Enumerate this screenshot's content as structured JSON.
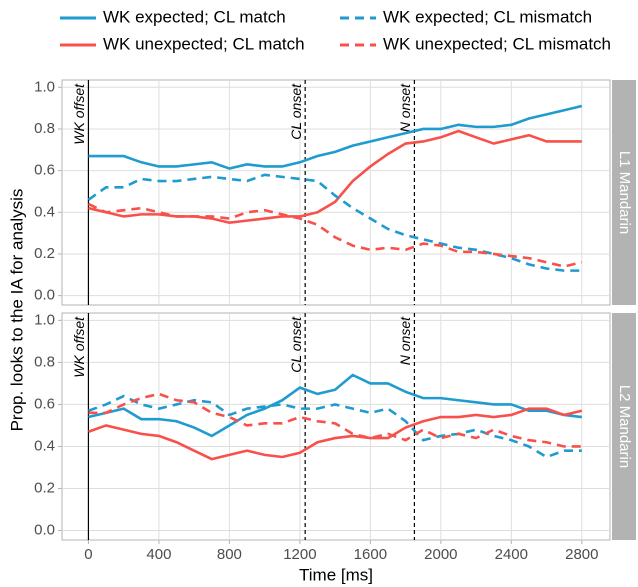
{
  "chart_data": [
    {
      "type": "line",
      "ylabel": "Prop. looks to the IA for analysis",
      "strip": "L1 Mandarin",
      "x": [
        0,
        100,
        200,
        300,
        400,
        500,
        600,
        700,
        800,
        900,
        1000,
        1100,
        1200,
        1300,
        1400,
        1500,
        1600,
        1700,
        1800,
        1900,
        2000,
        2100,
        2200,
        2300,
        2400,
        2500,
        2600,
        2700,
        2800
      ],
      "xlim": [
        -150,
        2960
      ],
      "ylim": [
        -0.045,
        1.035
      ],
      "yticks": [
        {
          "value": 0,
          "label": "0.0"
        },
        0.2,
        0.4,
        0.6,
        0.8,
        {
          "value": 1,
          "label": "1.0"
        }
      ],
      "grid": true,
      "annotations": [
        {
          "x": 0,
          "label": "WK offset",
          "dashed": false
        },
        {
          "x": 1230,
          "label": "CL onset",
          "dashed": true
        },
        {
          "x": 1850,
          "label": "N onset",
          "dashed": true
        }
      ],
      "series": [
        {
          "name": "WK expected; CL match",
          "color": "#1f9bcf",
          "dashed": false,
          "values": [
            0.67,
            0.67,
            0.67,
            0.64,
            0.62,
            0.62,
            0.63,
            0.64,
            0.61,
            0.63,
            0.62,
            0.62,
            0.64,
            0.67,
            0.69,
            0.72,
            0.74,
            0.76,
            0.78,
            0.8,
            0.8,
            0.82,
            0.81,
            0.81,
            0.82,
            0.85,
            0.87,
            0.89,
            0.91
          ]
        },
        {
          "name": "WK unexpected; CL match",
          "color": "#f8504b",
          "dashed": false,
          "values": [
            0.42,
            0.4,
            0.38,
            0.39,
            0.39,
            0.38,
            0.38,
            0.37,
            0.35,
            0.36,
            0.37,
            0.38,
            0.38,
            0.4,
            0.45,
            0.55,
            0.62,
            0.68,
            0.73,
            0.74,
            0.76,
            0.79,
            0.76,
            0.73,
            0.75,
            0.77,
            0.74,
            0.74,
            0.74
          ]
        },
        {
          "name": "WK expected; CL mismatch",
          "color": "#1f9bcf",
          "dashed": true,
          "values": [
            0.46,
            0.52,
            0.52,
            0.56,
            0.55,
            0.55,
            0.56,
            0.57,
            0.56,
            0.55,
            0.58,
            0.57,
            0.56,
            0.55,
            0.48,
            0.42,
            0.37,
            0.32,
            0.29,
            0.27,
            0.25,
            0.23,
            0.22,
            0.2,
            0.18,
            0.15,
            0.13,
            0.12,
            0.12
          ]
        },
        {
          "name": "WK unexpected; CL mismatch",
          "color": "#f8504b",
          "dashed": true,
          "values": [
            0.44,
            0.4,
            0.41,
            0.42,
            0.4,
            0.38,
            0.38,
            0.38,
            0.37,
            0.4,
            0.41,
            0.39,
            0.37,
            0.34,
            0.28,
            0.24,
            0.22,
            0.23,
            0.22,
            0.25,
            0.24,
            0.21,
            0.21,
            0.2,
            0.19,
            0.18,
            0.16,
            0.14,
            0.16
          ]
        }
      ]
    },
    {
      "type": "line",
      "xlabel": "Time [ms]",
      "strip": "L2 Mandarin",
      "x": [
        0,
        100,
        200,
        300,
        400,
        500,
        600,
        700,
        800,
        900,
        1000,
        1100,
        1200,
        1300,
        1400,
        1500,
        1600,
        1700,
        1800,
        1900,
        2000,
        2100,
        2200,
        2300,
        2400,
        2500,
        2600,
        2700,
        2800
      ],
      "xlim": [
        -150,
        2960
      ],
      "ylim": [
        -0.045,
        1.035
      ],
      "xticks": [
        0,
        400,
        800,
        1200,
        1600,
        2000,
        2400,
        2800
      ],
      "yticks": [
        {
          "value": 0,
          "label": "0.0"
        },
        0.2,
        0.4,
        0.6,
        0.8,
        {
          "value": 1,
          "label": "1.0"
        }
      ],
      "grid": true,
      "annotations": [
        {
          "x": 0,
          "label": "WK offset",
          "dashed": false
        },
        {
          "x": 1230,
          "label": "CL onset",
          "dashed": true
        },
        {
          "x": 1850,
          "label": "N onset",
          "dashed": true
        }
      ],
      "series": [
        {
          "color": "#1f9bcf",
          "dashed": false,
          "values": [
            0.54,
            0.56,
            0.58,
            0.53,
            0.53,
            0.52,
            0.49,
            0.45,
            0.5,
            0.55,
            0.58,
            0.62,
            0.68,
            0.65,
            0.67,
            0.74,
            0.7,
            0.7,
            0.66,
            0.63,
            0.63,
            0.62,
            0.61,
            0.6,
            0.6,
            0.57,
            0.57,
            0.55,
            0.54
          ]
        },
        {
          "color": "#f8504b",
          "dashed": false,
          "values": [
            0.47,
            0.5,
            0.48,
            0.46,
            0.45,
            0.42,
            0.38,
            0.34,
            0.36,
            0.38,
            0.36,
            0.35,
            0.37,
            0.42,
            0.44,
            0.45,
            0.44,
            0.44,
            0.49,
            0.52,
            0.54,
            0.54,
            0.55,
            0.54,
            0.55,
            0.58,
            0.58,
            0.55,
            0.57
          ]
        },
        {
          "color": "#1f9bcf",
          "dashed": true,
          "values": [
            0.57,
            0.6,
            0.64,
            0.6,
            0.58,
            0.6,
            0.62,
            0.61,
            0.55,
            0.58,
            0.59,
            0.6,
            0.58,
            0.58,
            0.6,
            0.58,
            0.56,
            0.58,
            0.52,
            0.43,
            0.45,
            0.46,
            0.48,
            0.45,
            0.43,
            0.4,
            0.35,
            0.38,
            0.38
          ]
        },
        {
          "color": "#f8504b",
          "dashed": true,
          "values": [
            0.56,
            0.56,
            0.6,
            0.63,
            0.65,
            0.62,
            0.61,
            0.56,
            0.54,
            0.5,
            0.51,
            0.51,
            0.54,
            0.52,
            0.51,
            0.46,
            0.44,
            0.46,
            0.43,
            0.48,
            0.44,
            0.46,
            0.44,
            0.48,
            0.45,
            0.43,
            0.42,
            0.4,
            0.4
          ]
        }
      ]
    }
  ]
}
